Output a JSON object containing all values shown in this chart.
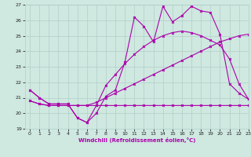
{
  "xlabel": "Windchill (Refroidissement éolien,°C)",
  "background_color": "#cfe8e0",
  "grid_color": "#b0cfc8",
  "line_color": "#aa00aa",
  "xlim": [
    -0.5,
    23
  ],
  "ylim": [
    19,
    27
  ],
  "yticks": [
    19,
    20,
    21,
    22,
    23,
    24,
    25,
    26,
    27
  ],
  "xticks": [
    0,
    1,
    2,
    3,
    4,
    5,
    6,
    7,
    8,
    9,
    10,
    11,
    12,
    13,
    14,
    15,
    16,
    17,
    18,
    19,
    20,
    21,
    22,
    23
  ],
  "series": [
    {
      "x": [
        0,
        1,
        2,
        3,
        4,
        5,
        6,
        7,
        8,
        9,
        10,
        11,
        12,
        13,
        14,
        15,
        16,
        17,
        18,
        19,
        20,
        21,
        22,
        23
      ],
      "y": [
        20.8,
        20.6,
        20.5,
        20.5,
        20.5,
        20.5,
        20.5,
        20.5,
        20.5,
        20.5,
        20.5,
        20.5,
        20.5,
        20.5,
        20.5,
        20.5,
        20.5,
        20.5,
        20.5,
        20.5,
        20.5,
        20.5,
        20.5,
        20.5
      ],
      "marker": "x",
      "markersize": 2,
      "linewidth": 0.8
    },
    {
      "x": [
        0,
        1,
        2,
        3,
        4,
        5,
        6,
        7,
        8,
        9,
        10,
        11,
        12,
        13,
        14,
        15,
        16,
        17,
        18,
        19,
        20,
        21,
        22,
        23
      ],
      "y": [
        20.8,
        20.6,
        20.5,
        20.5,
        20.5,
        20.5,
        20.5,
        20.7,
        21.0,
        21.3,
        21.6,
        21.9,
        22.2,
        22.5,
        22.8,
        23.1,
        23.4,
        23.7,
        24.0,
        24.3,
        24.6,
        24.8,
        25.0,
        25.1
      ],
      "marker": "x",
      "markersize": 2,
      "linewidth": 0.8
    },
    {
      "x": [
        0,
        1,
        2,
        3,
        4,
        5,
        6,
        7,
        8,
        9,
        10,
        11,
        12,
        13,
        14,
        15,
        16,
        17,
        18,
        19,
        20,
        21,
        22,
        23
      ],
      "y": [
        21.5,
        21.0,
        20.6,
        20.6,
        20.6,
        19.7,
        19.4,
        20.0,
        21.1,
        21.5,
        23.3,
        26.2,
        25.6,
        24.6,
        26.9,
        25.9,
        26.3,
        26.9,
        26.6,
        26.5,
        25.1,
        21.9,
        21.3,
        20.9
      ],
      "marker": "x",
      "markersize": 2,
      "linewidth": 0.8
    },
    {
      "x": [
        0,
        1,
        2,
        3,
        4,
        5,
        6,
        7,
        8,
        9,
        10,
        11,
        12,
        13,
        14,
        15,
        16,
        17,
        18,
        19,
        20,
        21,
        22,
        23
      ],
      "y": [
        21.5,
        21.0,
        20.6,
        20.6,
        20.6,
        19.7,
        19.4,
        20.5,
        21.8,
        22.5,
        23.2,
        23.8,
        24.3,
        24.7,
        25.0,
        25.2,
        25.3,
        25.2,
        25.0,
        24.7,
        24.4,
        23.5,
        21.9,
        20.9
      ],
      "marker": "x",
      "markersize": 2,
      "linewidth": 0.8
    }
  ]
}
